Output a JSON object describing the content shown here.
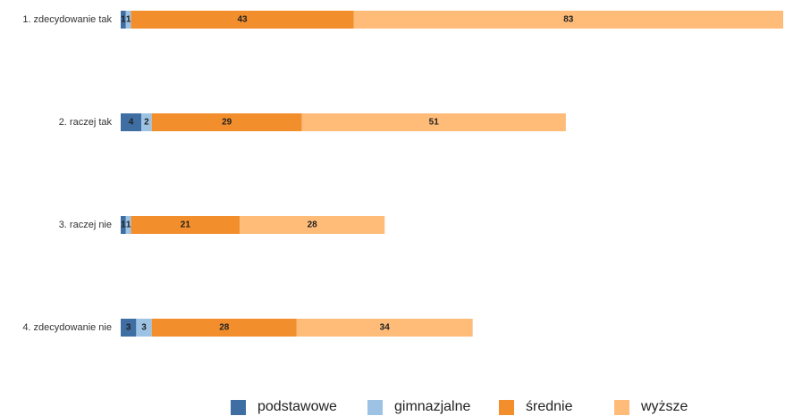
{
  "chart_data": {
    "type": "bar",
    "orientation": "horizontal",
    "stacked": true,
    "categories": [
      "1. zdecydowanie tak",
      "2. raczej tak",
      "3. raczej nie",
      "4. zdecydowanie nie"
    ],
    "series": [
      {
        "name": "podstawowe",
        "values": [
          1,
          4,
          1,
          3
        ],
        "color": "#3f6ea3"
      },
      {
        "name": "gimnazjalne",
        "values": [
          1,
          2,
          1,
          3
        ],
        "color": "#9dc3e4"
      },
      {
        "name": "średnie",
        "values": [
          43,
          29,
          21,
          28
        ],
        "color": "#f28e2b"
      },
      {
        "name": "wyższe",
        "values": [
          83,
          51,
          28,
          34
        ],
        "color": "#ffbb78"
      }
    ],
    "xlim": [
      0,
      128
    ],
    "grid": false,
    "legend_position": "bottom"
  }
}
